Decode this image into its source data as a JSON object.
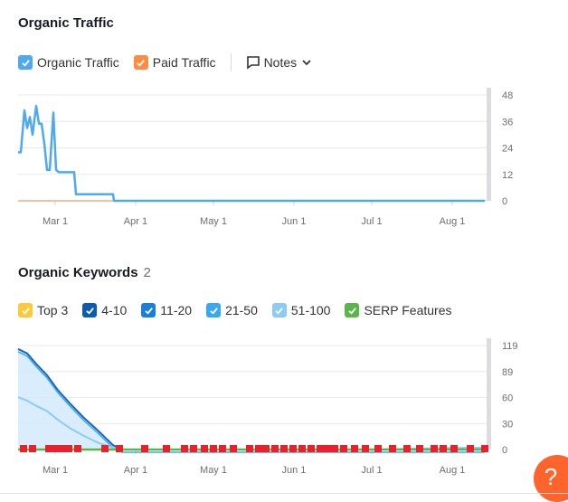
{
  "traffic": {
    "title": "Organic Traffic",
    "legend": {
      "organic_label": "Organic Traffic",
      "paid_label": "Paid Traffic",
      "notes_label": "Notes"
    },
    "colors": {
      "organic": "#4fa9ee",
      "paid": "#ff8c42"
    }
  },
  "keywords": {
    "title": "Organic Keywords",
    "count": "2",
    "legend": [
      {
        "label": "Top 3",
        "color": "#ffc83a"
      },
      {
        "label": "4-10",
        "color": "#0a5bb5"
      },
      {
        "label": "11-20",
        "color": "#1a7fd9"
      },
      {
        "label": "21-50",
        "color": "#3aa8f0"
      },
      {
        "label": "51-100",
        "color": "#8ccbf5"
      },
      {
        "label": "SERP Features",
        "color": "#58b847"
      }
    ]
  },
  "help_icon": "question-mark",
  "chart_data": [
    {
      "type": "line",
      "title": "Organic Traffic",
      "x_ticks": [
        "Mar 1",
        "Apr 1",
        "May 1",
        "Jun 1",
        "Jul 1",
        "Aug 1"
      ],
      "y_ticks": [
        "48",
        "36",
        "24",
        "12",
        "0"
      ],
      "ylim": [
        0,
        48
      ],
      "series": [
        {
          "name": "Organic Traffic",
          "x": [
            "Feb 1",
            "Feb 3",
            "Feb 5",
            "Feb 7",
            "Feb 9",
            "Feb 11",
            "Feb 13",
            "Feb 15",
            "Feb 17",
            "Feb 19",
            "Feb 21",
            "Feb 23",
            "Feb 25",
            "Feb 27",
            "Mar 1",
            "Mar 3",
            "Mar 5",
            "Mar 7",
            "Mar 9",
            "Mar 11",
            "Mar 13",
            "Mar 15",
            "Mar 17",
            "Mar 19",
            "Mar 21",
            "Mar 23",
            "Mar 25",
            "Mar 27",
            "Mar 29",
            "Mar 31",
            "Apr 2",
            "Apr 15",
            "May 1",
            "Jun 1",
            "Jul 1",
            "Aug 1",
            "Aug 15"
          ],
          "values": [
            22,
            22,
            41,
            33,
            38,
            30,
            43,
            35,
            35,
            26,
            14,
            14,
            40,
            14,
            13,
            13,
            13,
            13,
            13,
            13,
            3,
            3,
            3,
            3,
            3,
            3,
            3,
            3,
            3,
            3,
            0,
            0,
            0,
            0,
            0,
            0,
            0
          ]
        },
        {
          "name": "Paid Traffic",
          "x": [
            "Feb 1",
            "Apr 1"
          ],
          "values": [
            0,
            0
          ]
        }
      ]
    },
    {
      "type": "area",
      "title": "Organic Keywords",
      "x_ticks": [
        "Mar 1",
        "Apr 1",
        "May 1",
        "Jun 1",
        "Jul 1",
        "Aug 1"
      ],
      "y_ticks": [
        "119",
        "89",
        "60",
        "30",
        "0"
      ],
      "ylim": [
        0,
        119
      ],
      "series": [
        {
          "name": "4-10",
          "x": [
            "Feb 1",
            "Feb 8",
            "Feb 15",
            "Feb 22",
            "Mar 1",
            "Mar 8",
            "Mar 15",
            "Mar 22",
            "Mar 29",
            "Apr 1",
            "Apr 15",
            "May 1",
            "Jun 1",
            "Jul 1",
            "Aug 1",
            "Aug 15"
          ],
          "values": [
            115,
            110,
            98,
            85,
            68,
            52,
            37,
            22,
            5,
            0,
            0,
            0,
            0,
            0,
            0,
            0
          ]
        },
        {
          "name": "51-100",
          "x": [
            "Feb 1",
            "Feb 8",
            "Feb 15",
            "Feb 22",
            "Mar 1",
            "Mar 8",
            "Mar 15",
            "Mar 22",
            "Mar 29",
            "Apr 1",
            "Apr 15",
            "May 1",
            "Jun 1",
            "Jul 1",
            "Aug 1",
            "Aug 15"
          ],
          "values": [
            60,
            56,
            50,
            44,
            34,
            24,
            16,
            8,
            2,
            0,
            0,
            0,
            0,
            0,
            2,
            2
          ]
        },
        {
          "name": "SERP Features",
          "x": [
            "Feb 1",
            "Aug 15"
          ],
          "values": [
            0,
            0
          ]
        }
      ]
    }
  ]
}
